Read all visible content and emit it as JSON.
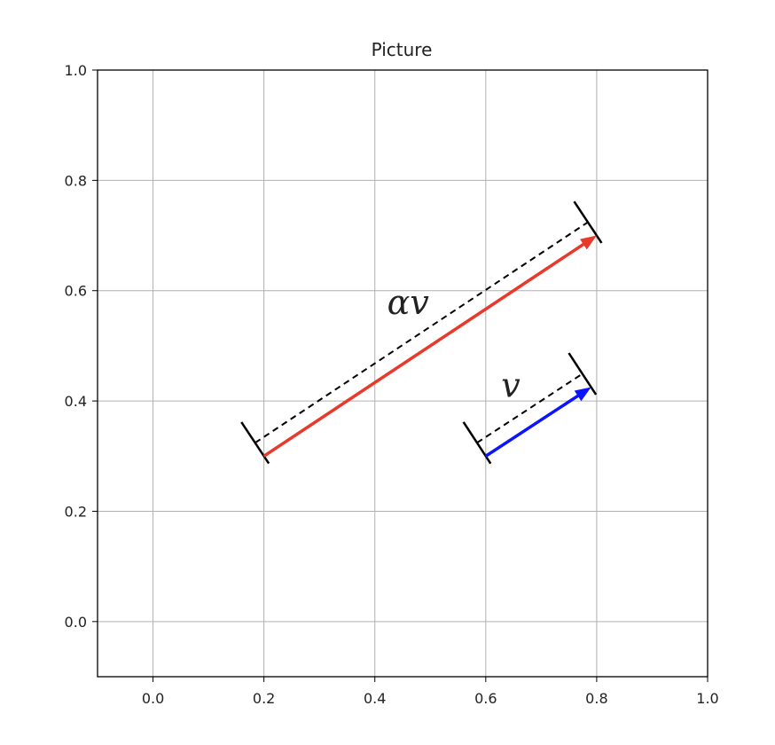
{
  "chart_data": {
    "type": "vector_diagram",
    "title": "Picture",
    "xlim": [
      -0.1,
      1.0
    ],
    "ylim": [
      -0.1,
      1.0
    ],
    "xticks": [
      "0.0",
      "0.2",
      "0.4",
      "0.6",
      "0.8",
      "1.0"
    ],
    "yticks": [
      "0.0",
      "0.2",
      "0.4",
      "0.6",
      "0.8",
      "1.0"
    ],
    "grid": true,
    "vectors": [
      {
        "label": "αv",
        "start": [
          0.2,
          0.3
        ],
        "end": [
          0.8,
          0.7
        ],
        "color": "#e8392b",
        "label_pos": [
          0.46,
          0.58
        ]
      },
      {
        "label": "v",
        "start": [
          0.6,
          0.3
        ],
        "end": [
          0.79,
          0.425
        ],
        "color": "#0a14ff",
        "label_pos": [
          0.645,
          0.43
        ]
      }
    ]
  }
}
